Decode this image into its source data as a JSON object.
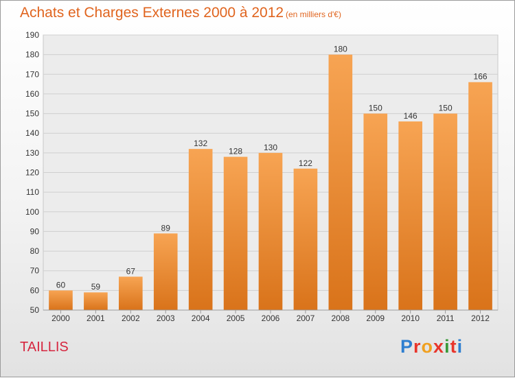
{
  "header": {
    "title": "Achats et Charges Externes 2000 à 2012",
    "subtitle": "(en milliers d'€)"
  },
  "footer": {
    "place": "TAILLIS",
    "logo_letters": [
      "P",
      "r",
      "o",
      "x",
      "i",
      "t",
      "i"
    ],
    "logo_colors": [
      "#2f7fd0",
      "#e8352b",
      "#f0a020",
      "#e8352b",
      "#3a9a3a",
      "#e8352b",
      "#2f7fd0"
    ]
  },
  "chart_data": {
    "type": "bar",
    "title": "Achats et Charges Externes 2000 à 2012",
    "subtitle": "(en milliers d'€)",
    "categories": [
      "2000",
      "2001",
      "2002",
      "2003",
      "2004",
      "2005",
      "2006",
      "2007",
      "2008",
      "2009",
      "2010",
      "2011",
      "2012"
    ],
    "values": [
      60,
      59,
      67,
      89,
      132,
      128,
      130,
      122,
      180,
      150,
      146,
      150,
      166
    ],
    "xlabel": "",
    "ylabel": "",
    "ylim": [
      50,
      190
    ],
    "yticks": [
      50,
      60,
      70,
      80,
      90,
      100,
      110,
      120,
      130,
      140,
      150,
      160,
      170,
      180,
      190
    ],
    "grid": true,
    "bar_color_top": "#f7a453",
    "bar_color_bottom": "#d9731a"
  }
}
